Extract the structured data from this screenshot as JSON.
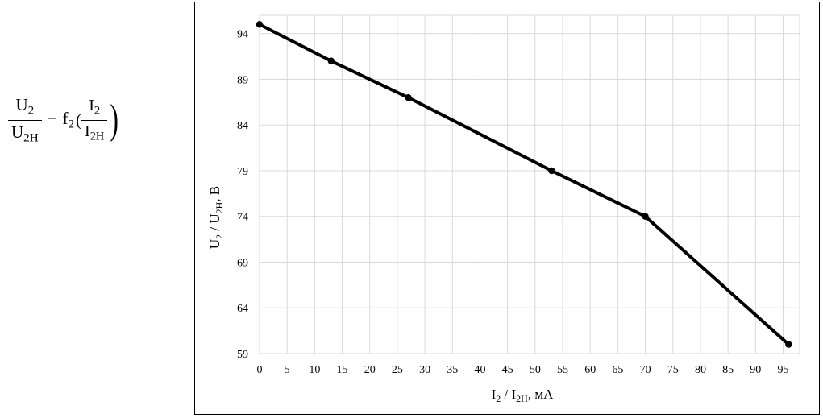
{
  "formula": {
    "lhs_num": "U",
    "lhs_num_sub": "2",
    "lhs_den": "U",
    "lhs_den_sub": "2H",
    "eq": "=",
    "func": "f",
    "func_sub": "2",
    "rhs_num": "I",
    "rhs_num_sub": "2",
    "rhs_den": "I",
    "rhs_den_sub": "2H"
  },
  "chart_data": {
    "type": "line",
    "x": [
      0,
      13,
      27,
      53,
      70,
      96
    ],
    "series": [
      {
        "values": [
          95,
          91,
          87,
          79,
          74,
          60
        ]
      }
    ],
    "xlabel": {
      "main": "I",
      "sub1": "2",
      "mid": " / I",
      "sub2": "2H",
      "tail": ", мА"
    },
    "ylabel": {
      "main": "U",
      "sub1": "2",
      "mid": " / U",
      "sub2": "2H",
      "tail": ", В"
    },
    "xticks": [
      0,
      5,
      10,
      15,
      20,
      25,
      30,
      35,
      40,
      45,
      50,
      55,
      60,
      65,
      70,
      75,
      80,
      85,
      90,
      95
    ],
    "yticks": [
      59,
      64,
      69,
      74,
      79,
      84,
      89,
      94
    ],
    "xlim": [
      0,
      98
    ],
    "ylim": [
      59,
      96
    ],
    "grid": true,
    "line_color": "#000000",
    "grid_color": "#d9d9d9"
  }
}
